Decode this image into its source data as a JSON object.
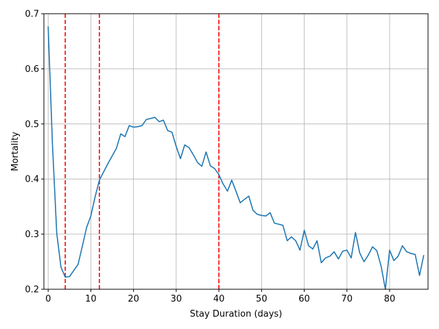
{
  "chart_data": {
    "type": "line",
    "xlabel": "Stay Duration (days)",
    "ylabel": "Mortality",
    "xlim": [
      -1,
      89
    ],
    "ylim": [
      0.2,
      0.7
    ],
    "xticks": [
      0,
      10,
      20,
      30,
      40,
      50,
      60,
      70,
      80
    ],
    "yticks": [
      0.2,
      0.3,
      0.4,
      0.5,
      0.6,
      0.7
    ],
    "xtick_labels": [
      "0",
      "10",
      "20",
      "30",
      "40",
      "50",
      "60",
      "70",
      "80"
    ],
    "ytick_labels": [
      "0.2",
      "0.3",
      "0.4",
      "0.5",
      "0.6",
      "0.7"
    ],
    "grid": true,
    "series": [
      {
        "color": "#1f77b4",
        "x": [
          0,
          1,
          2,
          3,
          4,
          5,
          7,
          8,
          9,
          10,
          11,
          12,
          13,
          14,
          15,
          16,
          17,
          18,
          19,
          20,
          21,
          22,
          23,
          24,
          25,
          26,
          27,
          28,
          29,
          30,
          31,
          32,
          33,
          34,
          35,
          36,
          37,
          38,
          39,
          40,
          41,
          42,
          43,
          44,
          45,
          46,
          47,
          48,
          49,
          50,
          51,
          52,
          53,
          54,
          55,
          56,
          57,
          58,
          59,
          60,
          61,
          62,
          63,
          64,
          65,
          66,
          67,
          68,
          69,
          70,
          71,
          72,
          73,
          74,
          75,
          76,
          77,
          78,
          79,
          80,
          81,
          82,
          83,
          84,
          85,
          86,
          87,
          88
        ],
        "y": [
          0.677,
          0.465,
          0.302,
          0.24,
          0.222,
          0.223,
          0.245,
          0.278,
          0.312,
          0.333,
          0.368,
          0.398,
          0.413,
          0.428,
          0.442,
          0.456,
          0.482,
          0.477,
          0.497,
          0.494,
          0.495,
          0.497,
          0.508,
          0.51,
          0.512,
          0.504,
          0.507,
          0.488,
          0.485,
          0.459,
          0.437,
          0.462,
          0.457,
          0.444,
          0.43,
          0.423,
          0.449,
          0.424,
          0.419,
          0.408,
          0.391,
          0.378,
          0.398,
          0.378,
          0.357,
          0.363,
          0.369,
          0.343,
          0.336,
          0.334,
          0.333,
          0.339,
          0.32,
          0.318,
          0.316,
          0.288,
          0.295,
          0.288,
          0.271,
          0.307,
          0.279,
          0.273,
          0.288,
          0.248,
          0.257,
          0.26,
          0.268,
          0.255,
          0.269,
          0.271,
          0.257,
          0.303,
          0.266,
          0.25,
          0.262,
          0.277,
          0.27,
          0.242,
          0.2,
          0.271,
          0.252,
          0.26,
          0.279,
          0.268,
          0.265,
          0.263,
          0.225,
          0.262
        ]
      }
    ],
    "vlines": [
      {
        "x": 4,
        "color": "#ff0000",
        "style": "dashed"
      },
      {
        "x": 12,
        "color": "#ff0000",
        "style": "dashed"
      },
      {
        "x": 40,
        "color": "#ff0000",
        "style": "dashed"
      }
    ]
  }
}
